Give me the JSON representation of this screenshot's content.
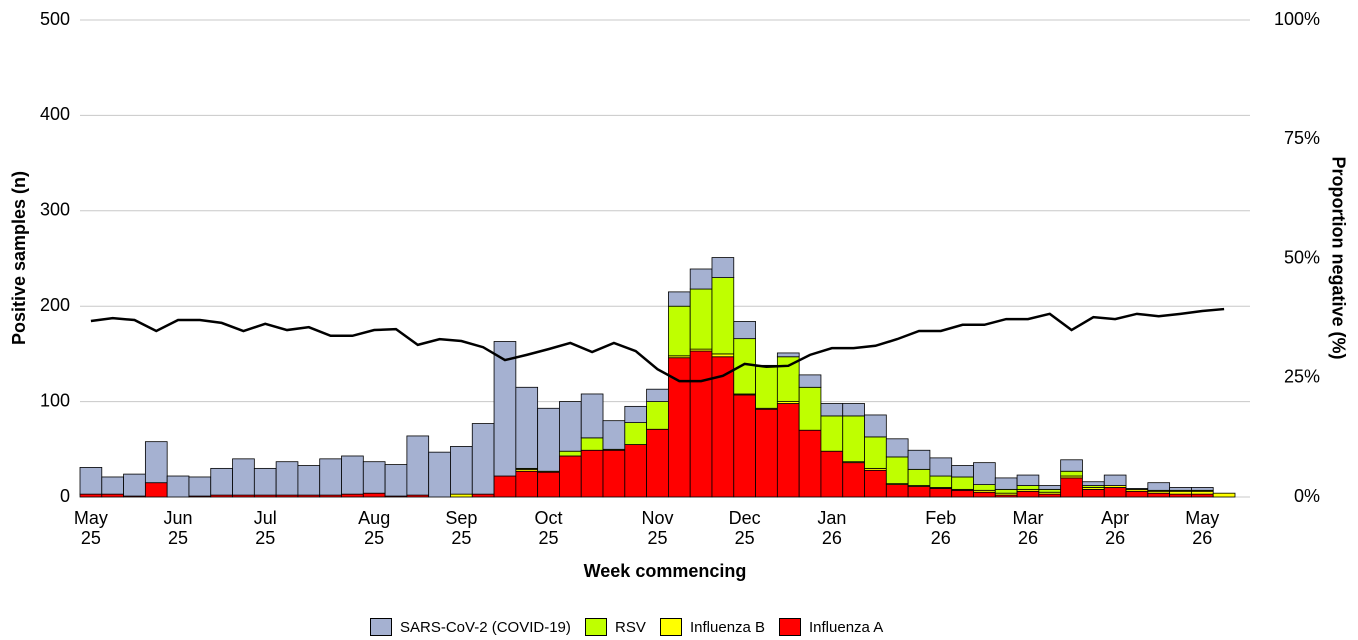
{
  "chart_data": {
    "type": "bar",
    "x_label": "Week commencing",
    "y_label": "Positive samples (n)",
    "y2_label": "Proportion negative (%)",
    "categories": [
      "May\n25",
      null,
      null,
      null,
      "Jun\n25",
      null,
      null,
      null,
      "Jul\n25",
      null,
      null,
      null,
      null,
      "Aug\n25",
      null,
      null,
      null,
      "Sep\n25",
      null,
      null,
      null,
      "Oct\n25",
      null,
      null,
      null,
      null,
      "Nov\n25",
      null,
      null,
      null,
      "Dec\n25",
      null,
      null,
      null,
      "Jan\n26",
      null,
      null,
      null,
      null,
      "Feb\n26",
      null,
      null,
      null,
      "Mar\n26",
      null,
      null,
      null,
      "Apr\n26",
      null,
      null,
      null,
      "May\n26",
      null
    ],
    "stacked": true,
    "ylim": [
      0,
      500
    ],
    "yticks": [
      0,
      100,
      200,
      300,
      400,
      500
    ],
    "y2lim": [
      0,
      100
    ],
    "y2ticks": [
      {
        "value": 0,
        "label": "0%"
      },
      {
        "value": 25,
        "label": "25%"
      },
      {
        "value": 50,
        "label": "50%"
      },
      {
        "value": 75,
        "label": "75%"
      },
      {
        "value": 100,
        "label": "100%"
      }
    ],
    "grid": true,
    "legend": "bottom",
    "series": [
      {
        "name": "SARS-CoV-2 (COVID-19)",
        "color": "#a5b1d1",
        "values": [
          28,
          18,
          23,
          43,
          22,
          20,
          28,
          38,
          28,
          35,
          31,
          38,
          40,
          33,
          33,
          62,
          47,
          50,
          74,
          141,
          85,
          66,
          52,
          46,
          30,
          17,
          13,
          15,
          21,
          21,
          18,
          1,
          4,
          13,
          13,
          13,
          23,
          19,
          20,
          19,
          12,
          23,
          12,
          11,
          4,
          12,
          4,
          11,
          1,
          8,
          3,
          3,
          0
        ]
      },
      {
        "name": "RSV",
        "color": "#bfff00",
        "values": [
          0,
          0,
          0,
          0,
          0,
          0,
          0,
          0,
          0,
          0,
          0,
          0,
          0,
          0,
          0,
          0,
          0,
          0,
          0,
          0,
          1,
          1,
          5,
          13,
          1,
          23,
          29,
          52,
          63,
          80,
          58,
          44,
          47,
          45,
          37,
          48,
          33,
          28,
          17,
          12,
          13,
          6,
          4,
          4,
          3,
          5,
          2,
          0,
          0,
          1,
          1,
          1,
          0
        ]
      },
      {
        "name": "Influenza B",
        "color": "#ffff00",
        "values": [
          0,
          0,
          0,
          0,
          0,
          0,
          0,
          0,
          0,
          0,
          0,
          0,
          0,
          0,
          0,
          0,
          0,
          3,
          0,
          0,
          2,
          0,
          0,
          0,
          0,
          0,
          0,
          2,
          2,
          3,
          1,
          1,
          2,
          0,
          0,
          1,
          2,
          1,
          1,
          1,
          1,
          2,
          2,
          2,
          2,
          2,
          2,
          2,
          2,
          2,
          3,
          3,
          4
        ]
      },
      {
        "name": "Influenza A",
        "color": "#ff0000",
        "values": [
          3,
          3,
          1,
          15,
          0,
          1,
          2,
          2,
          2,
          2,
          2,
          2,
          3,
          4,
          1,
          2,
          0,
          0,
          3,
          22,
          27,
          26,
          43,
          49,
          49,
          55,
          71,
          146,
          153,
          147,
          107,
          92,
          98,
          70,
          48,
          36,
          28,
          13,
          11,
          9,
          7,
          5,
          2,
          6,
          3,
          20,
          8,
          10,
          6,
          4,
          3,
          3,
          0
        ]
      },
      {
        "type": "line",
        "axis": "y2",
        "color": "#000000",
        "values": [
          36.9,
          37.5,
          37.1,
          34.8,
          37.1,
          37.1,
          36.5,
          34.8,
          36.3,
          35.0,
          35.6,
          33.8,
          33.8,
          35.0,
          35.2,
          31.9,
          33.1,
          32.7,
          31.4,
          28.7,
          29.8,
          31.0,
          32.3,
          30.4,
          32.3,
          30.6,
          26.8,
          24.3,
          24.3,
          25.4,
          27.9,
          27.3,
          27.5,
          29.8,
          31.2,
          31.2,
          31.7,
          33.1,
          34.8,
          34.8,
          36.1,
          36.1,
          37.3,
          37.3,
          38.4,
          35.0,
          37.7,
          37.3,
          38.4,
          37.9,
          38.4,
          39.0,
          39.4
        ]
      }
    ]
  }
}
